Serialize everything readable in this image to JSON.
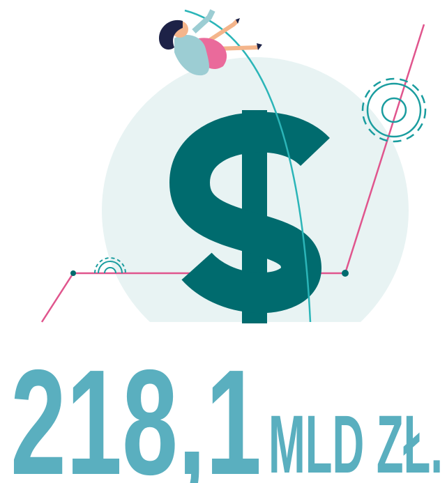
{
  "amount": "218,1",
  "unit": "MLD ZŁ."
}
